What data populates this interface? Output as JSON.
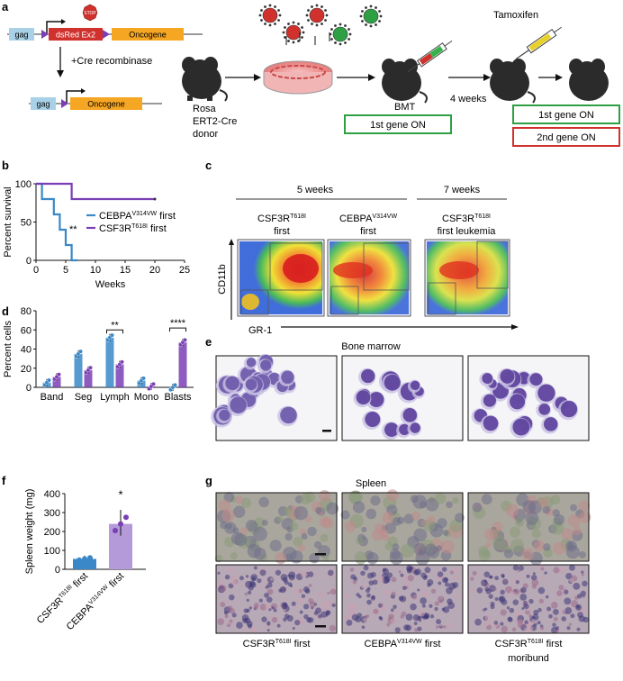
{
  "panel_labels": {
    "a": "a",
    "b": "b",
    "c": "c",
    "d": "d",
    "e": "e",
    "f": "f",
    "g": "g"
  },
  "panel_a": {
    "construct_gag": "gag",
    "construct_dsred": "dsRed Ex2",
    "construct_stop": "STOP",
    "construct_oncogene": "Oncogene",
    "cre_label": "+Cre recombinase",
    "donor_label": [
      "Rosa",
      "ERT2-Cre",
      "donor"
    ],
    "bmt_label": "BMT",
    "weeks_label": "4 weeks",
    "tamoxifen_label": "Tamoxifen",
    "first_gene_on": "1st gene ON",
    "second_gene_on": "2nd gene ON",
    "colors": {
      "gag": "#a8d1e7",
      "oncogene": "#f5a623",
      "green_box": "#2ea043",
      "red_box": "#d0312d",
      "loxp": "#7a3fb5"
    }
  },
  "chart_b": {
    "type": "line",
    "ylabel": "Percent survival",
    "xlabel": "Weeks",
    "xlim": [
      0,
      25
    ],
    "ylim": [
      0,
      100
    ],
    "xticks": [
      "0",
      "5",
      "10",
      "15",
      "20",
      "25"
    ],
    "yticks": [
      "0",
      "50",
      "100"
    ],
    "significance": "**",
    "series": [
      {
        "name": "CEBPA",
        "name_sup": "V314VW",
        "name_suffix": " first",
        "color": "#3a88c7",
        "points": [
          [
            0,
            100
          ],
          [
            1,
            100
          ],
          [
            1,
            80
          ],
          [
            3,
            80
          ],
          [
            3,
            60
          ],
          [
            4,
            60
          ],
          [
            4,
            40
          ],
          [
            5,
            40
          ],
          [
            5,
            20
          ],
          [
            6,
            20
          ],
          [
            6,
            0
          ],
          [
            7,
            0
          ]
        ]
      },
      {
        "name": "CSF3R",
        "name_sup": "T618I",
        "name_suffix": " first",
        "color": "#7a3fb5",
        "points": [
          [
            0,
            100
          ],
          [
            6,
            100
          ],
          [
            6,
            80
          ],
          [
            20,
            80
          ]
        ]
      }
    ]
  },
  "panel_c": {
    "time_labels": [
      "5 weeks",
      "7 weeks"
    ],
    "plots": [
      {
        "title": "CSF3R",
        "sup": "T618I",
        "line2": "first"
      },
      {
        "title": "CEBPA",
        "sup": "V314VW",
        "line2": "first"
      },
      {
        "title": "CSF3R",
        "sup": "T618I",
        "line2": "first leukemia"
      }
    ],
    "ylabel": "CD11b",
    "xlabel": "GR-1"
  },
  "chart_d": {
    "type": "bar",
    "ylabel": "Percent cells",
    "categories": [
      "Band",
      "Seg",
      "Lymph",
      "Mono",
      "Blasts"
    ],
    "yticks": [
      "0",
      "20",
      "40",
      "60",
      "80"
    ],
    "ylim": [
      0,
      80
    ],
    "series": [
      {
        "name": "CEBPA V314VW first",
        "color": "#3a88c7",
        "values": [
          5,
          35,
          52,
          7,
          0
        ]
      },
      {
        "name": "CSF3R T618I first",
        "color": "#7a3fb5",
        "values": [
          11,
          18,
          24,
          1,
          47
        ]
      }
    ],
    "significance": [
      {
        "category": "Lymph",
        "label": "**"
      },
      {
        "category": "Blasts",
        "label": "****"
      }
    ]
  },
  "panel_e": {
    "title": "Bone marrow"
  },
  "chart_f": {
    "type": "bar",
    "ylabel": "Spleen weight (mg)",
    "yticks": [
      "0",
      "100",
      "200",
      "300",
      "400"
    ],
    "ylim": [
      0,
      400
    ],
    "categories": [
      {
        "name": "CSF3R",
        "sup": "T618I",
        "suffix": " first"
      },
      {
        "name": "CEBPA",
        "sup": "V314VW",
        "suffix": " first"
      }
    ],
    "values": [
      55,
      240
    ],
    "colors": [
      "#3a88c7",
      "#b49ad8"
    ],
    "significance": "*"
  },
  "panel_g": {
    "title": "Spleen",
    "captions": [
      {
        "name": "CSF3R",
        "sup": "T618I",
        "suffix": " first",
        "line2": ""
      },
      {
        "name": "CEBPA",
        "sup": "V314VW",
        "suffix": " first",
        "line2": ""
      },
      {
        "name": "CSF3R",
        "sup": "T618I",
        "suffix": " first",
        "line2": "moribund"
      }
    ]
  }
}
